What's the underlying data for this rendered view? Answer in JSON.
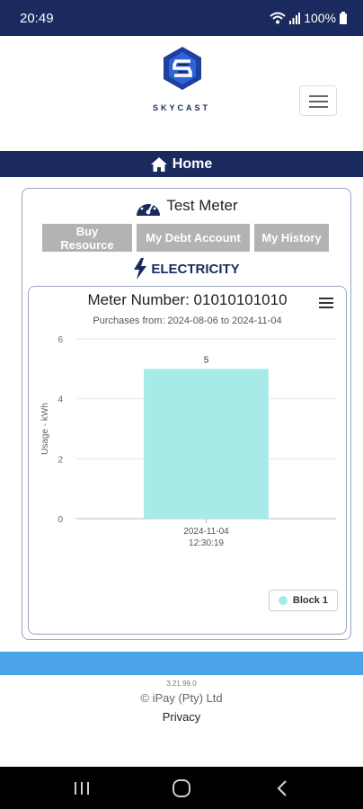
{
  "status_bar": {
    "time": "20:49",
    "battery": "100%"
  },
  "brand": {
    "name": "SKYCAST"
  },
  "nav": {
    "home_label": "Home"
  },
  "meter": {
    "name": "Test Meter",
    "buttons": [
      "Buy Resource",
      "My Debt Account",
      "My History"
    ],
    "resource_type": "ELECTRICITY"
  },
  "chart_data": {
    "type": "bar",
    "title": "Meter Number: 01010101010",
    "subtitle": "Purchases from: 2024-08-06 to 2024-11-04",
    "categories": [
      "2024-11-04 12:30:19"
    ],
    "category_lines": [
      [
        "2024-11-04",
        "12:30:19"
      ]
    ],
    "series": [
      {
        "name": "Block 1",
        "values": [
          5
        ],
        "color": "#a7ebe9"
      }
    ],
    "ylabel": "Usage - kWh",
    "xlabel": "",
    "ylim": [
      0,
      6
    ],
    "yticks": [
      0,
      2,
      4,
      6
    ],
    "grid": true,
    "legend": "bottom-right",
    "data_labels": true
  },
  "footer": {
    "version": "3.21.99.0",
    "copyright": "© iPay (Pty) Ltd",
    "privacy": "Privacy"
  },
  "colors": {
    "navy": "#1a2a5e",
    "accent_blue": "#4aa3e6",
    "button_gray": "#b3b3b3",
    "bar": "#a7ebe9"
  }
}
